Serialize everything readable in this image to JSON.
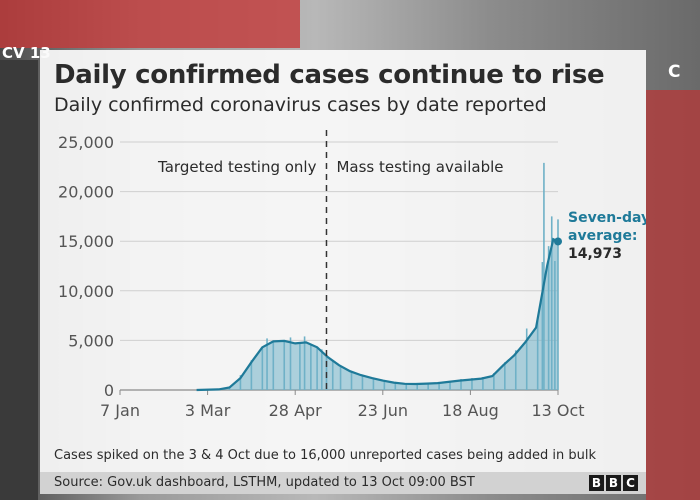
{
  "channel_logo": "CV 13",
  "channel_logo_right": "C",
  "chart_data": {
    "type": "bar",
    "title": "Daily confirmed cases continue to rise",
    "subtitle": "Daily confirmed coronavirus cases by date reported",
    "xlabel": "",
    "ylabel": "",
    "ylim": [
      0,
      25000
    ],
    "y_ticks": [
      "0",
      "5,000",
      "10,000",
      "15,000",
      "20,000",
      "25,000"
    ],
    "x_ticks": [
      {
        "label": "7 Jan",
        "date": "2020-01-07"
      },
      {
        "label": "3 Mar",
        "date": "2020-03-03"
      },
      {
        "label": "28 Apr",
        "date": "2020-04-28"
      },
      {
        "label": "23 Jun",
        "date": "2020-06-23"
      },
      {
        "label": "18 Aug",
        "date": "2020-08-18"
      },
      {
        "label": "13 Oct",
        "date": "2020-10-13"
      }
    ],
    "x_range": [
      "2020-01-07",
      "2020-10-13"
    ],
    "grid": true,
    "divider": {
      "date": "2020-05-18",
      "left_label": "Targeted testing only",
      "right_label": "Mass testing available"
    },
    "series": [
      {
        "kind": "bars",
        "points": [
          [
            "2020-01-31",
            2
          ],
          [
            "2020-03-01",
            35
          ],
          [
            "2020-03-10",
            90
          ],
          [
            "2020-03-17",
            300
          ],
          [
            "2020-03-24",
            1500
          ],
          [
            "2020-03-31",
            3000
          ],
          [
            "2020-04-07",
            4200
          ],
          [
            "2020-04-10",
            5200
          ],
          [
            "2020-04-14",
            4800
          ],
          [
            "2020-04-21",
            5000
          ],
          [
            "2020-04-25",
            5300
          ],
          [
            "2020-05-01",
            4800
          ],
          [
            "2020-05-04",
            5400
          ],
          [
            "2020-05-08",
            4600
          ],
          [
            "2020-05-12",
            4200
          ],
          [
            "2020-05-15",
            4100
          ],
          [
            "2020-05-18",
            3500
          ],
          [
            "2020-05-22",
            3000
          ],
          [
            "2020-05-27",
            2400
          ],
          [
            "2020-06-03",
            1900
          ],
          [
            "2020-06-10",
            1500
          ],
          [
            "2020-06-17",
            1200
          ],
          [
            "2020-06-24",
            950
          ],
          [
            "2020-07-01",
            800
          ],
          [
            "2020-07-08",
            650
          ],
          [
            "2020-07-15",
            600
          ],
          [
            "2020-07-22",
            700
          ],
          [
            "2020-07-29",
            800
          ],
          [
            "2020-08-05",
            900
          ],
          [
            "2020-08-12",
            1100
          ],
          [
            "2020-08-19",
            1200
          ],
          [
            "2020-08-26",
            1300
          ],
          [
            "2020-09-02",
            1700
          ],
          [
            "2020-09-09",
            2800
          ],
          [
            "2020-09-16",
            4000
          ],
          [
            "2020-09-23",
            6200
          ],
          [
            "2020-09-30",
            7200
          ],
          [
            "2020-10-03",
            12900
          ],
          [
            "2020-10-04",
            22900
          ],
          [
            "2020-10-07",
            14500
          ],
          [
            "2020-10-09",
            17500
          ],
          [
            "2020-10-11",
            13000
          ],
          [
            "2020-10-13",
            17200
          ]
        ]
      },
      {
        "kind": "seven_day_average_line",
        "points": [
          [
            "2020-02-25",
            0
          ],
          [
            "2020-03-10",
            60
          ],
          [
            "2020-03-17",
            250
          ],
          [
            "2020-03-24",
            1200
          ],
          [
            "2020-03-31",
            2800
          ],
          [
            "2020-04-07",
            4300
          ],
          [
            "2020-04-14",
            4900
          ],
          [
            "2020-04-21",
            4950
          ],
          [
            "2020-04-28",
            4700
          ],
          [
            "2020-05-05",
            4800
          ],
          [
            "2020-05-12",
            4300
          ],
          [
            "2020-05-19",
            3300
          ],
          [
            "2020-05-26",
            2500
          ],
          [
            "2020-06-02",
            1900
          ],
          [
            "2020-06-09",
            1500
          ],
          [
            "2020-06-16",
            1200
          ],
          [
            "2020-06-23",
            950
          ],
          [
            "2020-06-30",
            750
          ],
          [
            "2020-07-07",
            620
          ],
          [
            "2020-07-14",
            600
          ],
          [
            "2020-07-21",
            650
          ],
          [
            "2020-07-28",
            700
          ],
          [
            "2020-08-04",
            820
          ],
          [
            "2020-08-11",
            950
          ],
          [
            "2020-08-18",
            1050
          ],
          [
            "2020-08-25",
            1150
          ],
          [
            "2020-09-01",
            1400
          ],
          [
            "2020-09-08",
            2500
          ],
          [
            "2020-09-15",
            3500
          ],
          [
            "2020-09-22",
            4800
          ],
          [
            "2020-09-29",
            6300
          ],
          [
            "2020-10-06",
            12500
          ],
          [
            "2020-10-10",
            15200
          ],
          [
            "2020-10-13",
            14973
          ]
        ]
      }
    ],
    "annotation": {
      "line1": "Seven-day",
      "line2": "average:",
      "line3": "14,973"
    },
    "footnote": "Cases spiked on the 3 & 4 Oct due to 16,000 unreported cases being added in bulk",
    "source": "Source: Gov.uk dashboard, LSTHM, updated to 13 Oct 09:00 BST",
    "branding": [
      "B",
      "B",
      "C"
    ],
    "colors": {
      "accent": "#1f7a99",
      "area_fill": "#6fb1c7",
      "axis": "#8a8a8a",
      "text": "#2b2b2b"
    }
  }
}
